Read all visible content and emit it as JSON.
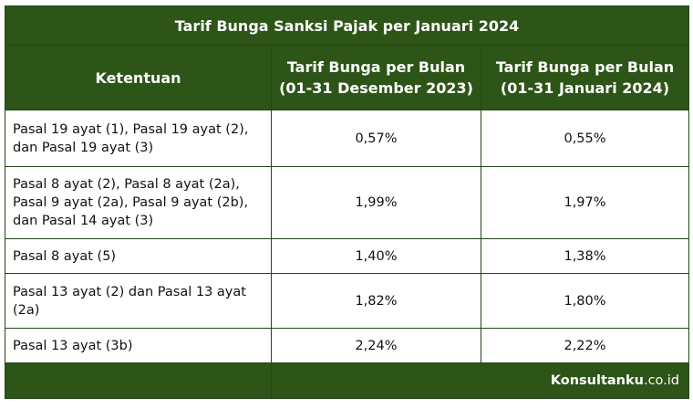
{
  "title": "Tarif Bunga Sanksi Pajak per Januari 2024",
  "headers": {
    "col1": "Ketentuan",
    "col2_line1": "Tarif Bunga per Bulan",
    "col2_line2": "(01-31 Desember 2023)",
    "col3_line1": "Tarif Bunga per Bulan",
    "col3_line2": "(01-31 Januari 2024)"
  },
  "rows": [
    {
      "ketentuan": "Pasal 19 ayat (1), Pasal 19 ayat (2), dan Pasal 19 ayat (3)",
      "desember_2023": "0,57%",
      "januari_2024": "0,55%"
    },
    {
      "ketentuan": "Pasal 8 ayat (2), Pasal 8 ayat (2a), Pasal 9 ayat (2a), Pasal 9 ayat (2b), dan Pasal 14 ayat (3)",
      "desember_2023": "1,99%",
      "januari_2024": "1,97%"
    },
    {
      "ketentuan": "Pasal 8 ayat (5)",
      "desember_2023": "1,40%",
      "januari_2024": "1,38%"
    },
    {
      "ketentuan": "Pasal 13 ayat (2) dan Pasal 13 ayat (2a)",
      "desember_2023": "1,82%",
      "januari_2024": "1,80%"
    },
    {
      "ketentuan": "Pasal 13 ayat (3b)",
      "desember_2023": "2,24%",
      "januari_2024": "2,22%"
    }
  ],
  "footer": {
    "brand_bold": "Konsultanku",
    "brand_suffix": ".co.id"
  },
  "colors": {
    "header_green": "#2c5517",
    "border_green": "#24461a"
  }
}
